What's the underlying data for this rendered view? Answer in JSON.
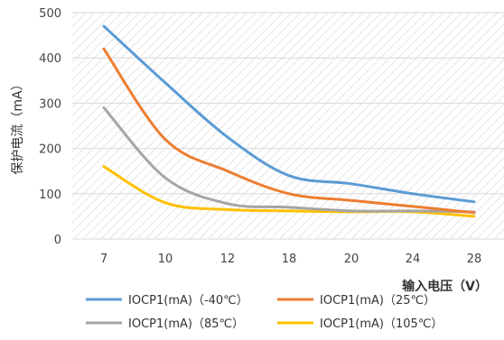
{
  "chart_data": {
    "type": "line",
    "categories": [
      "7",
      "10",
      "12",
      "18",
      "20",
      "24",
      "28"
    ],
    "ylabel": "保护电流（mA）",
    "xlabel": "输入电压（V）",
    "ylim": [
      0,
      500
    ],
    "yticks": [
      0,
      100,
      200,
      300,
      400,
      500
    ],
    "grid": "horizontal gridlines, diagonal hatched plot background",
    "legend_position": "bottom",
    "series": [
      {
        "name": "IOCP1(mA)（-40℃）",
        "color": "#5b9bd5",
        "values": [
          470,
          345,
          225,
          140,
          122,
          100,
          82
        ]
      },
      {
        "name": "IOCP1(mA)（25℃）",
        "color": "#ed7d31",
        "values": [
          420,
          220,
          150,
          100,
          85,
          72,
          58
        ]
      },
      {
        "name": "IOCP1(mA)（85℃）",
        "color": "#a5a5a5",
        "values": [
          290,
          135,
          78,
          70,
          62,
          62,
          60
        ]
      },
      {
        "name": "IOCP1(mA)（105℃）",
        "color": "#ffc000",
        "values": [
          160,
          80,
          65,
          62,
          60,
          60,
          50
        ]
      }
    ]
  }
}
